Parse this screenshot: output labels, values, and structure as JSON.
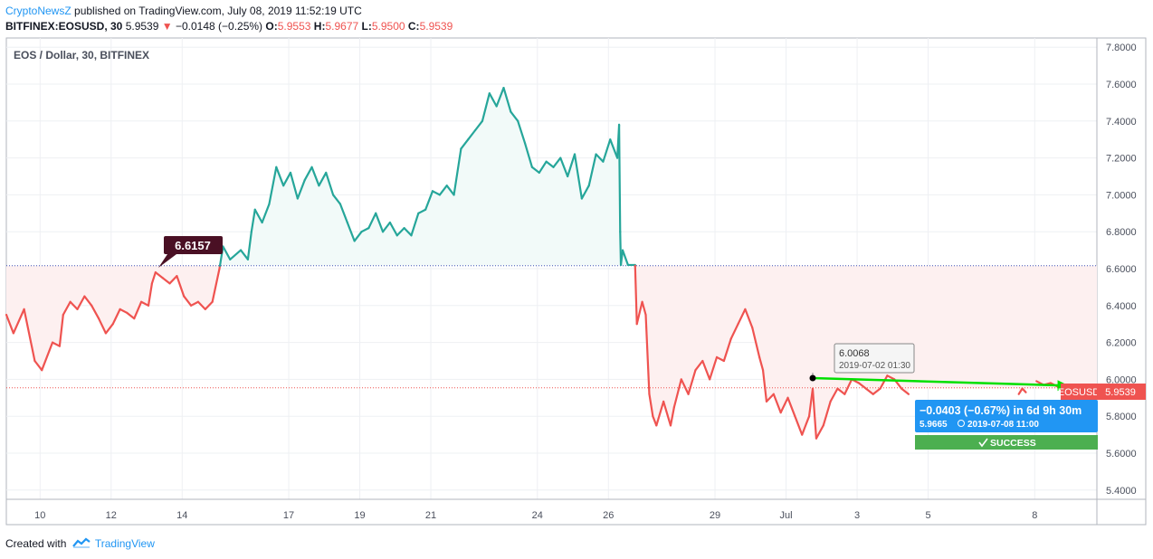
{
  "header": {
    "publisher": "CryptoNewsZ",
    "published_text": "published on TradingView.com, July 08, 2019 11:52:19 UTC",
    "symbol": "BITFINEX:EOSUSD, 30",
    "last": "5.9539",
    "arrow": "▼",
    "change": "−0.0148 (−0.25%)",
    "o_label": "O:",
    "o_value": "5.9553",
    "h_label": "H:",
    "h_value": "5.9677",
    "l_label": "L:",
    "l_value": "5.9500",
    "c_label": "C:",
    "c_value": "5.9539"
  },
  "footer": {
    "created_with": "Created with",
    "brand": "TradingView"
  },
  "colors": {
    "up": "#26a69a",
    "down": "#ef5350",
    "up_fill": "#f2faf9",
    "down_fill": "#fdf0f0",
    "grid": "#eef0f3",
    "axis": "#9aa0ab",
    "blue": "#2196f3",
    "green_arrow": "#00e000",
    "success": "#4caf50",
    "marker_dark": "#4a1024"
  },
  "chart_data": {
    "type": "line",
    "title": "EOS / Dollar, 30, BITFINEX",
    "ylim": [
      5.35,
      7.85
    ],
    "y_ticks": [
      "7.8000",
      "7.6000",
      "7.4000",
      "7.2000",
      "7.0000",
      "6.8000",
      "6.6000",
      "6.4000",
      "6.2000",
      "6.0000",
      "5.8000",
      "5.6000",
      "5.4000"
    ],
    "x_range": [
      9.0,
      39.7
    ],
    "x_ticks": [
      {
        "day": 9.95,
        "label": "10"
      },
      {
        "day": 11.95,
        "label": "12"
      },
      {
        "day": 13.95,
        "label": "14"
      },
      {
        "day": 16.95,
        "label": "17"
      },
      {
        "day": 18.95,
        "label": "19"
      },
      {
        "day": 20.95,
        "label": "21"
      },
      {
        "day": 23.95,
        "label": "24"
      },
      {
        "day": 25.95,
        "label": "26"
      },
      {
        "day": 28.95,
        "label": "29"
      },
      {
        "day": 30.95,
        "label": "Jul"
      },
      {
        "day": 32.95,
        "label": "3"
      },
      {
        "day": 34.95,
        "label": "5"
      },
      {
        "day": 37.95,
        "label": "8"
      }
    ],
    "baseline": 6.6157,
    "baseline_label": "6.6157",
    "last_price": 5.9539,
    "last_price_label": "5.9539",
    "symbol_tag": "EOSUSD",
    "series": [
      {
        "points": [
          [
            9.0,
            6.35
          ],
          [
            9.2,
            6.25
          ],
          [
            9.5,
            6.38
          ],
          [
            9.8,
            6.1
          ],
          [
            10.0,
            6.05
          ],
          [
            10.3,
            6.2
          ],
          [
            10.5,
            6.18
          ],
          [
            10.6,
            6.35
          ],
          [
            10.8,
            6.42
          ],
          [
            11.0,
            6.38
          ],
          [
            11.2,
            6.45
          ],
          [
            11.4,
            6.4
          ],
          [
            11.6,
            6.33
          ],
          [
            11.8,
            6.25
          ],
          [
            12.0,
            6.3
          ],
          [
            12.2,
            6.38
          ],
          [
            12.4,
            6.36
          ],
          [
            12.6,
            6.33
          ],
          [
            12.8,
            6.42
          ],
          [
            13.0,
            6.4
          ],
          [
            13.1,
            6.52
          ],
          [
            13.2,
            6.58
          ],
          [
            13.4,
            6.55
          ],
          [
            13.6,
            6.52
          ],
          [
            13.8,
            6.56
          ],
          [
            14.0,
            6.45
          ],
          [
            14.2,
            6.4
          ],
          [
            14.4,
            6.42
          ],
          [
            14.6,
            6.38
          ],
          [
            14.8,
            6.42
          ],
          [
            15.0,
            6.6
          ],
          [
            15.1,
            6.72
          ],
          [
            15.3,
            6.65
          ],
          [
            15.6,
            6.7
          ],
          [
            15.8,
            6.65
          ],
          [
            15.9,
            6.8
          ],
          [
            16.0,
            6.92
          ],
          [
            16.2,
            6.85
          ],
          [
            16.4,
            6.95
          ],
          [
            16.6,
            7.15
          ],
          [
            16.8,
            7.05
          ],
          [
            17.0,
            7.12
          ],
          [
            17.2,
            6.98
          ],
          [
            17.4,
            7.08
          ],
          [
            17.6,
            7.15
          ],
          [
            17.8,
            7.05
          ],
          [
            18.0,
            7.12
          ],
          [
            18.2,
            7.0
          ],
          [
            18.4,
            6.95
          ],
          [
            18.6,
            6.85
          ],
          [
            18.8,
            6.75
          ],
          [
            19.0,
            6.8
          ],
          [
            19.2,
            6.82
          ],
          [
            19.4,
            6.9
          ],
          [
            19.6,
            6.8
          ],
          [
            19.8,
            6.85
          ],
          [
            20.0,
            6.78
          ],
          [
            20.2,
            6.82
          ],
          [
            20.4,
            6.78
          ],
          [
            20.6,
            6.9
          ],
          [
            20.8,
            6.92
          ],
          [
            21.0,
            7.02
          ],
          [
            21.2,
            7.0
          ],
          [
            21.4,
            7.05
          ],
          [
            21.6,
            7.0
          ],
          [
            21.8,
            7.25
          ],
          [
            22.0,
            7.3
          ],
          [
            22.2,
            7.35
          ],
          [
            22.4,
            7.4
          ],
          [
            22.6,
            7.55
          ],
          [
            22.8,
            7.48
          ],
          [
            23.0,
            7.58
          ],
          [
            23.2,
            7.45
          ],
          [
            23.4,
            7.4
          ],
          [
            23.6,
            7.28
          ],
          [
            23.8,
            7.15
          ],
          [
            24.0,
            7.12
          ],
          [
            24.2,
            7.18
          ],
          [
            24.4,
            7.15
          ],
          [
            24.6,
            7.2
          ],
          [
            24.8,
            7.1
          ],
          [
            25.0,
            7.22
          ],
          [
            25.2,
            6.98
          ],
          [
            25.4,
            7.05
          ],
          [
            25.6,
            7.22
          ],
          [
            25.8,
            7.18
          ],
          [
            26.0,
            7.3
          ],
          [
            26.2,
            7.2
          ],
          [
            26.25,
            7.38
          ],
          [
            26.28,
            6.8
          ],
          [
            26.3,
            6.62
          ],
          [
            26.35,
            6.7
          ],
          [
            26.5,
            6.62
          ],
          [
            26.7,
            6.62
          ],
          [
            26.75,
            6.3
          ],
          [
            26.9,
            6.42
          ],
          [
            27.0,
            6.35
          ],
          [
            27.1,
            5.92
          ],
          [
            27.2,
            5.8
          ],
          [
            27.3,
            5.75
          ],
          [
            27.5,
            5.88
          ],
          [
            27.7,
            5.75
          ],
          [
            27.8,
            5.85
          ],
          [
            28.0,
            6.0
          ],
          [
            28.2,
            5.92
          ],
          [
            28.4,
            6.05
          ],
          [
            28.6,
            6.1
          ],
          [
            28.8,
            6.0
          ],
          [
            29.0,
            6.12
          ],
          [
            29.2,
            6.1
          ],
          [
            29.4,
            6.22
          ],
          [
            29.6,
            6.3
          ],
          [
            29.8,
            6.38
          ],
          [
            30.0,
            6.28
          ],
          [
            30.2,
            6.12
          ],
          [
            30.3,
            6.05
          ],
          [
            30.4,
            5.88
          ],
          [
            30.6,
            5.92
          ],
          [
            30.8,
            5.82
          ],
          [
            31.0,
            5.9
          ],
          [
            31.2,
            5.8
          ],
          [
            31.4,
            5.7
          ],
          [
            31.6,
            5.8
          ],
          [
            31.7,
            5.95
          ],
          [
            31.8,
            5.68
          ],
          [
            32.0,
            5.75
          ],
          [
            32.2,
            5.88
          ],
          [
            32.4,
            5.95
          ],
          [
            32.6,
            5.92
          ],
          [
            32.8,
            6.0
          ],
          [
            33.0,
            5.98
          ],
          [
            33.2,
            5.95
          ],
          [
            33.4,
            5.92
          ],
          [
            33.6,
            5.95
          ],
          [
            33.8,
            6.02
          ],
          [
            34.0,
            6.0
          ],
          [
            34.2,
            5.95
          ],
          [
            34.4,
            5.92
          ]
        ]
      },
      {
        "points": [
          [
            37.5,
            5.92
          ],
          [
            37.6,
            5.95
          ],
          [
            37.7,
            5.93
          ]
        ]
      },
      {
        "points": [
          [
            38.0,
            5.99
          ],
          [
            38.2,
            5.97
          ],
          [
            38.4,
            5.98
          ],
          [
            38.6,
            5.96
          ],
          [
            38.8,
            5.97
          ],
          [
            38.95,
            5.9539
          ]
        ]
      }
    ],
    "annotations": [
      {
        "type": "price-point",
        "value": "6.0068",
        "date": "2019-07-02 01:30",
        "x": 31.7,
        "y": 6.0068
      },
      {
        "type": "projection",
        "text": "−0.0403 (−0.67%)  in 6d 9h 30m",
        "sub_value": "5.9665",
        "sub_date": "2019-07-08  11:00",
        "status": "SUCCESS",
        "x_end": 38.95,
        "y_end": 5.9665
      }
    ]
  }
}
